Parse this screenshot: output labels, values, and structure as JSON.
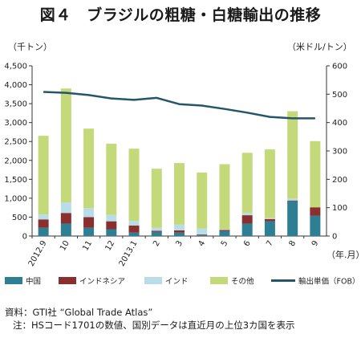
{
  "title": "図４　ブラジルの粗糖・白糖輸出の推移",
  "chart_data": {
    "type": "bar",
    "stacked": true,
    "categories": [
      "2012.9",
      "10",
      "11",
      "12",
      "2013.1",
      "2",
      "3",
      "4",
      "5",
      "6",
      "7",
      "8",
      "9"
    ],
    "x_unit": "（年.月）",
    "y_left": {
      "unit": "（千トン）",
      "ylim": [
        0,
        4500
      ],
      "ticks": [
        "0",
        "500",
        "1,000",
        "1,500",
        "2,000",
        "2,500",
        "3,000",
        "3,500",
        "4,000",
        "4,500"
      ]
    },
    "y_right": {
      "unit": "（米ドル/トン）",
      "ylim": [
        0,
        600
      ],
      "ticks": [
        "0",
        "100",
        "200",
        "300",
        "400",
        "500",
        "600"
      ]
    },
    "series": [
      {
        "name": "中国",
        "color": "#2e7f93",
        "values": [
          220,
          330,
          220,
          180,
          90,
          110,
          90,
          20,
          130,
          330,
          390,
          920,
          540
        ]
      },
      {
        "name": "インドネシア",
        "color": "#8b2e2e",
        "values": [
          220,
          280,
          280,
          210,
          190,
          30,
          60,
          20,
          30,
          220,
          60,
          20,
          220
        ]
      },
      {
        "name": "インド",
        "color": "#b8dde8",
        "values": [
          130,
          280,
          240,
          170,
          120,
          80,
          150,
          160,
          20,
          60,
          30,
          50,
          0
        ]
      },
      {
        "name": "その他",
        "color": "#c4d97a",
        "values": [
          2080,
          3010,
          2100,
          1880,
          1910,
          1560,
          1630,
          1480,
          1720,
          1590,
          1810,
          2310,
          1750
        ]
      }
    ],
    "line": {
      "name": "輸出単価（FOB）",
      "color": "#24566a",
      "axis": "right",
      "values": [
        508,
        505,
        497,
        485,
        480,
        487,
        465,
        460,
        448,
        435,
        420,
        415,
        415
      ]
    },
    "legend_position": "bottom",
    "grid": false
  },
  "notes": [
    "資料：GTI社 “Global Trade Atlas”",
    "注：HSコード1701の数値、国別データは直近月の上位3カ国を表示"
  ]
}
